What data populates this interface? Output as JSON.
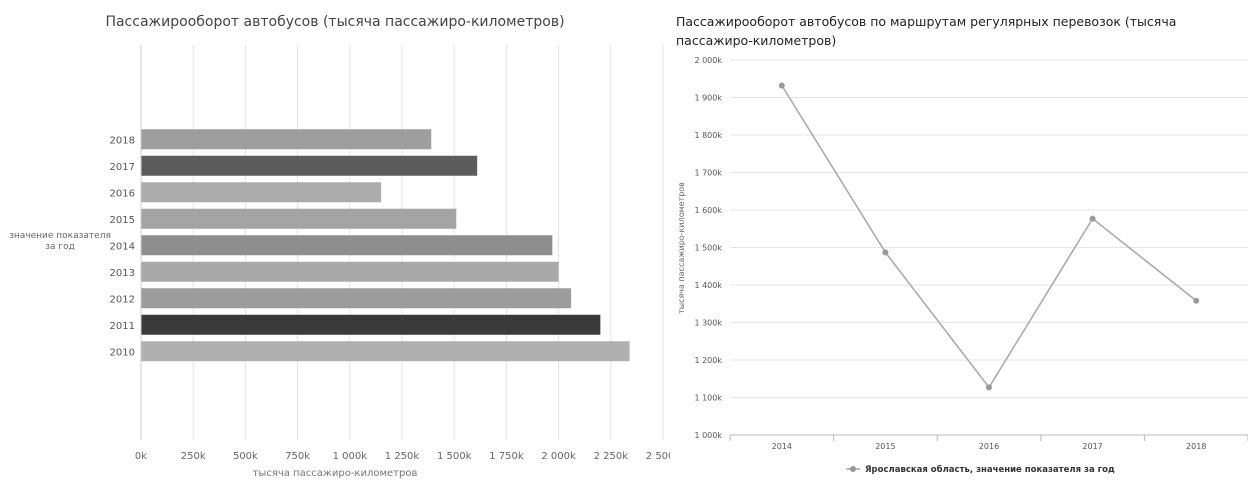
{
  "chart_data": [
    {
      "type": "bar",
      "orientation": "horizontal",
      "title": "Пассажирооборот автобусов (тысяча пассажиро-километров)",
      "ylabel": "значение показателя за год",
      "xlabel": "тысяча пассажиро-километров",
      "categories": [
        "2018",
        "2017",
        "2016",
        "2015",
        "2014",
        "2013",
        "2012",
        "2011",
        "2010"
      ],
      "values": [
        1390,
        1610,
        1150,
        1510,
        1970,
        2000,
        2060,
        2200,
        2340
      ],
      "bar_colors": [
        "#9e9e9e",
        "#5c5c5c",
        "#ababab",
        "#a4a4a4",
        "#8e8e8e",
        "#a9a9a9",
        "#9c9c9c",
        "#3a3a3a",
        "#b0b0b0"
      ],
      "x_ticks": [
        "0k",
        "250k",
        "500k",
        "750k",
        "1 000k",
        "1 250k",
        "1 500k",
        "1 750k",
        "2 000k",
        "2 250k",
        "2 500k"
      ],
      "xlim": [
        0,
        2500
      ],
      "grid": true
    },
    {
      "type": "line",
      "title": "Пассажирооборот автобусов по маршрутам регулярных перевозок (тысяча пассажиро-километров)",
      "ylabel": "тысяча пассажиро-километров",
      "x": [
        "2014",
        "2015",
        "2016",
        "2017",
        "2018"
      ],
      "series": [
        {
          "name": "Ярославская область, значение показателя за год",
          "values": [
            1932,
            1487,
            1127,
            1577,
            1358
          ]
        }
      ],
      "y_ticks": [
        "1 000k",
        "1 100k",
        "1 200k",
        "1 300k",
        "1 400k",
        "1 500k",
        "1 600k",
        "1 700k",
        "1 800k",
        "1 900k",
        "2 000k"
      ],
      "ylim": [
        1000,
        2000
      ],
      "grid": true,
      "legend_position": "bottom-center",
      "line_color": "#aaaaaa"
    }
  ]
}
